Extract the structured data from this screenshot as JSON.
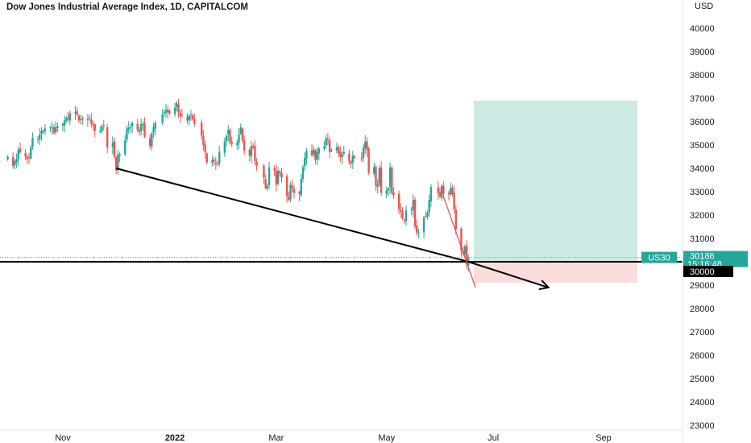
{
  "header": {
    "title": "Dow Jones Industrial Average Index, 1D, CAPITALCOM",
    "currency": "USD"
  },
  "colors": {
    "up": "#26a69a",
    "down": "#ef5350",
    "target_zone": "#cde9e3",
    "stop_zone": "#fbdcdc",
    "line": "#000000",
    "axis_text": "#131722",
    "tag_bg": "#26a69a"
  },
  "chart_data": {
    "type": "candlestick",
    "title": "Dow Jones Industrial Average Index, 1D, CAPITALCOM",
    "ylabel": "USD",
    "ylim": [
      22700,
      41200
    ],
    "y_ticks": [
      23000,
      24000,
      25000,
      26000,
      27000,
      28000,
      29000,
      30000,
      31000,
      32000,
      33000,
      34000,
      35000,
      36000,
      37000,
      38000,
      39000,
      40000
    ],
    "x_ticks": [
      {
        "label": "Nov",
        "date": "2021-11-01",
        "bold": false
      },
      {
        "label": "2022",
        "date": "2022-01-03",
        "bold": true
      },
      {
        "label": "Mar",
        "date": "2022-03-01",
        "bold": false
      },
      {
        "label": "May",
        "date": "2022-05-02",
        "bold": false
      },
      {
        "label": "Jul",
        "date": "2022-07-01",
        "bold": false
      },
      {
        "label": "Sep",
        "date": "2022-09-01",
        "bold": false
      }
    ],
    "grid": false,
    "series_close": [
      [
        "2021-10-01",
        34500
      ],
      [
        "2021-10-04",
        34100
      ],
      [
        "2021-10-05",
        34300
      ],
      [
        "2021-10-06",
        34400
      ],
      [
        "2021-10-07",
        34800
      ],
      [
        "2021-10-08",
        34700
      ],
      [
        "2021-10-11",
        34500
      ],
      [
        "2021-10-12",
        34400
      ],
      [
        "2021-10-13",
        34450
      ],
      [
        "2021-10-14",
        34900
      ],
      [
        "2021-10-15",
        35300
      ],
      [
        "2021-10-18",
        35250
      ],
      [
        "2021-10-19",
        35450
      ],
      [
        "2021-10-20",
        35600
      ],
      [
        "2021-10-21",
        35600
      ],
      [
        "2021-10-22",
        35700
      ],
      [
        "2021-10-25",
        35750
      ],
      [
        "2021-10-26",
        35750
      ],
      [
        "2021-10-27",
        35500
      ],
      [
        "2021-10-28",
        35750
      ],
      [
        "2021-10-29",
        35800
      ],
      [
        "2021-11-01",
        35900
      ],
      [
        "2021-11-02",
        36050
      ],
      [
        "2021-11-03",
        36150
      ],
      [
        "2021-11-04",
        36100
      ],
      [
        "2021-11-05",
        36350
      ],
      [
        "2021-11-08",
        36400
      ],
      [
        "2021-11-09",
        36300
      ],
      [
        "2021-11-10",
        36050
      ],
      [
        "2021-11-11",
        36100
      ],
      [
        "2021-11-12",
        36100
      ],
      [
        "2021-11-15",
        36100
      ],
      [
        "2021-11-16",
        36150
      ],
      [
        "2021-11-17",
        35900
      ],
      [
        "2021-11-18",
        35850
      ],
      [
        "2021-11-19",
        35600
      ],
      [
        "2021-11-22",
        35600
      ],
      [
        "2021-11-23",
        35800
      ],
      [
        "2021-11-24",
        35800
      ],
      [
        "2021-11-26",
        34900
      ],
      [
        "2021-11-29",
        35100
      ],
      [
        "2021-11-30",
        34500
      ],
      [
        "2021-12-01",
        33900
      ],
      [
        "2021-12-02",
        34600
      ],
      [
        "2021-12-03",
        34600
      ],
      [
        "2021-12-06",
        35200
      ],
      [
        "2021-12-07",
        35700
      ],
      [
        "2021-12-08",
        35750
      ],
      [
        "2021-12-09",
        35750
      ],
      [
        "2021-12-10",
        35950
      ],
      [
        "2021-12-13",
        35650
      ],
      [
        "2021-12-14",
        35550
      ],
      [
        "2021-12-15",
        35900
      ],
      [
        "2021-12-16",
        35900
      ],
      [
        "2021-12-17",
        35350
      ],
      [
        "2021-12-20",
        34950
      ],
      [
        "2021-12-21",
        35500
      ],
      [
        "2021-12-22",
        35750
      ],
      [
        "2021-12-23",
        35950
      ],
      [
        "2021-12-27",
        36300
      ],
      [
        "2021-12-28",
        36400
      ],
      [
        "2021-12-29",
        36500
      ],
      [
        "2021-12-30",
        36400
      ],
      [
        "2021-12-31",
        36350
      ],
      [
        "2022-01-03",
        36600
      ],
      [
        "2022-01-04",
        36800
      ],
      [
        "2022-01-05",
        36400
      ],
      [
        "2022-01-06",
        36250
      ],
      [
        "2022-01-07",
        36250
      ],
      [
        "2022-01-10",
        36050
      ],
      [
        "2022-01-11",
        36250
      ],
      [
        "2022-01-12",
        36300
      ],
      [
        "2022-01-13",
        36100
      ],
      [
        "2022-01-14",
        35900
      ],
      [
        "2022-01-18",
        35400
      ],
      [
        "2022-01-19",
        35000
      ],
      [
        "2022-01-20",
        34700
      ],
      [
        "2022-01-21",
        34250
      ],
      [
        "2022-01-24",
        34350
      ],
      [
        "2022-01-25",
        34300
      ],
      [
        "2022-01-26",
        34200
      ],
      [
        "2022-01-27",
        34150
      ],
      [
        "2022-01-28",
        34700
      ],
      [
        "2022-01-31",
        35150
      ],
      [
        "2022-02-01",
        35400
      ],
      [
        "2022-02-02",
        35650
      ],
      [
        "2022-02-03",
        35100
      ],
      [
        "2022-02-04",
        35050
      ],
      [
        "2022-02-07",
        35100
      ],
      [
        "2022-02-08",
        35450
      ],
      [
        "2022-02-09",
        35750
      ],
      [
        "2022-02-10",
        35200
      ],
      [
        "2022-02-11",
        34750
      ],
      [
        "2022-02-14",
        34550
      ],
      [
        "2022-02-15",
        34950
      ],
      [
        "2022-02-16",
        34900
      ],
      [
        "2022-02-17",
        34300
      ],
      [
        "2022-02-18",
        34100
      ],
      [
        "2022-02-22",
        33600
      ],
      [
        "2022-02-23",
        33150
      ],
      [
        "2022-02-24",
        33250
      ],
      [
        "2022-02-25",
        34050
      ],
      [
        "2022-02-28",
        33900
      ],
      [
        "2022-03-01",
        33300
      ],
      [
        "2022-03-02",
        33900
      ],
      [
        "2022-03-03",
        33800
      ],
      [
        "2022-03-04",
        33600
      ],
      [
        "2022-03-07",
        32800
      ],
      [
        "2022-03-08",
        32650
      ],
      [
        "2022-03-09",
        33300
      ],
      [
        "2022-03-10",
        33150
      ],
      [
        "2022-03-11",
        32950
      ],
      [
        "2022-03-14",
        32900
      ],
      [
        "2022-03-15",
        33550
      ],
      [
        "2022-03-16",
        34050
      ],
      [
        "2022-03-17",
        34450
      ],
      [
        "2022-03-18",
        34750
      ],
      [
        "2022-03-21",
        34550
      ],
      [
        "2022-03-22",
        34800
      ],
      [
        "2022-03-23",
        34350
      ],
      [
        "2022-03-24",
        34700
      ],
      [
        "2022-03-25",
        34850
      ],
      [
        "2022-03-28",
        34950
      ],
      [
        "2022-03-29",
        35300
      ],
      [
        "2022-03-30",
        35200
      ],
      [
        "2022-03-31",
        34700
      ],
      [
        "2022-04-01",
        34800
      ],
      [
        "2022-04-04",
        34900
      ],
      [
        "2022-04-05",
        34650
      ],
      [
        "2022-04-06",
        34500
      ],
      [
        "2022-04-07",
        34600
      ],
      [
        "2022-04-08",
        34700
      ],
      [
        "2022-04-11",
        34300
      ],
      [
        "2022-04-12",
        34200
      ],
      [
        "2022-04-13",
        34550
      ],
      [
        "2022-04-14",
        34450
      ],
      [
        "2022-04-18",
        34400
      ],
      [
        "2022-04-19",
        34900
      ],
      [
        "2022-04-20",
        35150
      ],
      [
        "2022-04-21",
        34800
      ],
      [
        "2022-04-22",
        33800
      ],
      [
        "2022-04-25",
        34050
      ],
      [
        "2022-04-26",
        33250
      ],
      [
        "2022-04-27",
        33300
      ],
      [
        "2022-04-28",
        34000
      ],
      [
        "2022-04-29",
        32950
      ],
      [
        "2022-05-02",
        33050
      ],
      [
        "2022-05-03",
        33150
      ],
      [
        "2022-05-04",
        34050
      ],
      [
        "2022-05-05",
        32950
      ],
      [
        "2022-05-06",
        32850
      ],
      [
        "2022-05-09",
        32250
      ],
      [
        "2022-05-10",
        32150
      ],
      [
        "2022-05-11",
        31850
      ],
      [
        "2022-05-12",
        31750
      ],
      [
        "2022-05-13",
        32200
      ],
      [
        "2022-05-16",
        32250
      ],
      [
        "2022-05-17",
        32650
      ],
      [
        "2022-05-18",
        31500
      ],
      [
        "2022-05-19",
        31250
      ],
      [
        "2022-05-20",
        31250
      ],
      [
        "2022-05-23",
        31900
      ],
      [
        "2022-05-24",
        31950
      ],
      [
        "2022-05-25",
        32100
      ],
      [
        "2022-05-26",
        32650
      ],
      [
        "2022-05-27",
        33200
      ],
      [
        "2022-05-31",
        32950
      ],
      [
        "2022-06-01",
        32800
      ],
      [
        "2022-06-02",
        33250
      ],
      [
        "2022-06-03",
        32900
      ],
      [
        "2022-06-06",
        32900
      ],
      [
        "2022-06-07",
        33150
      ],
      [
        "2022-06-08",
        32900
      ],
      [
        "2022-06-09",
        32250
      ],
      [
        "2022-06-10",
        31400
      ],
      [
        "2022-06-13",
        30500
      ],
      [
        "2022-06-14",
        30350
      ],
      [
        "2022-06-15",
        30650
      ],
      [
        "2022-06-16",
        29900
      ],
      [
        "2022-06-17",
        30186
      ]
    ],
    "annotations": {
      "trendline": {
        "from": {
          "date": "2021-12-01",
          "value": 34000
        },
        "to": {
          "date": "2022-06-17",
          "value": 30000
        }
      },
      "horizontal_line": 30000,
      "arrow": {
        "from": {
          "date": "2022-06-17",
          "value": 30000
        },
        "to": {
          "date": "2022-08-01",
          "value": 28900
        }
      },
      "red_trend": {
        "from": {
          "date": "2022-06-03",
          "value": 32800
        },
        "to": {
          "date": "2022-06-21",
          "value": 28900
        }
      },
      "target_zone": {
        "from_date": "2022-06-20",
        "to_date": "2022-09-20",
        "low": 30000,
        "high": 36900
      },
      "stop_zone": {
        "from_date": "2022-06-20",
        "to_date": "2022-09-20",
        "low": 29100,
        "high": 30000
      }
    },
    "price_tags": {
      "symbol": "US30",
      "last_price": "30186",
      "countdown": "15:16:48",
      "level": "30000"
    }
  }
}
